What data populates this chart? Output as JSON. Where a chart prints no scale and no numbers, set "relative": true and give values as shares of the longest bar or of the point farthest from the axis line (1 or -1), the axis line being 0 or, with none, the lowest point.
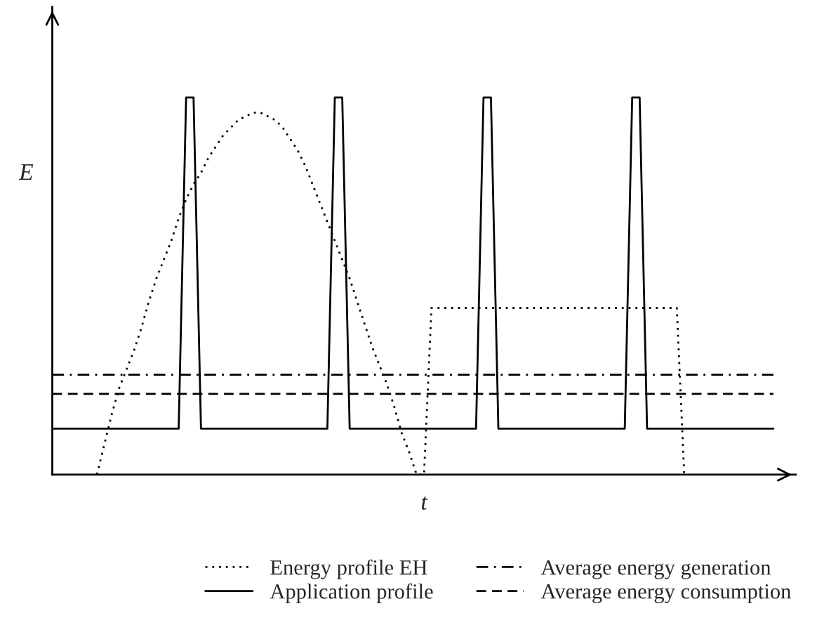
{
  "chart_data": {
    "type": "line",
    "relative": true,
    "xlabel": "t",
    "ylabel": "E",
    "legend": "bottom",
    "categories": [
      null,
      null,
      null,
      null,
      null,
      null,
      null,
      null,
      null,
      null,
      null,
      null,
      null,
      null,
      null,
      null,
      null,
      null,
      null,
      null,
      null,
      null,
      null,
      null,
      null,
      null,
      null,
      null,
      null,
      null,
      null,
      null,
      null,
      null,
      null,
      null,
      null,
      null,
      null,
      null,
      null,
      null,
      null,
      null,
      null,
      null,
      null,
      null,
      null,
      null,
      null,
      null,
      null,
      null,
      null,
      null,
      null,
      null,
      null,
      null,
      null,
      null,
      null,
      null,
      null,
      null,
      null,
      null,
      null,
      null,
      null,
      null,
      null,
      null,
      null,
      null,
      null,
      null,
      null,
      null,
      null,
      null,
      null,
      null,
      null,
      null,
      null,
      null,
      null,
      null,
      null,
      null,
      null,
      null,
      null,
      null,
      null,
      null,
      null,
      null,
      null
    ],
    "series": [
      {
        "name": "Energy profile EH",
        "color": "#000000",
        "line_style": "dotted",
        "values": [
          null,
          null,
          null,
          null,
          null,
          null,
          0,
          0.08,
          0.16,
          0.23,
          0.28,
          0.33,
          0.39,
          0.46,
          0.52,
          0.57,
          0.62,
          0.68,
          0.73,
          0.77,
          0.8,
          0.84,
          0.87,
          0.9,
          0.92,
          0.94,
          0.95,
          0.96,
          0.96,
          0.95,
          0.94,
          0.92,
          0.89,
          0.86,
          0.82,
          0.77,
          0.72,
          0.67,
          0.62,
          0.57,
          0.52,
          0.46,
          0.4,
          0.34,
          0.29,
          0.24,
          0.18,
          0.11,
          0.06,
          0,
          0,
          0.442,
          0.442,
          0.442,
          0.442,
          0.442,
          0.442,
          0.442,
          0.442,
          0.442,
          0.442,
          0.442,
          0.442,
          0.442,
          0.442,
          0.442,
          0.442,
          0.442,
          0.442,
          0.442,
          0.442,
          0.442,
          0.442,
          0.442,
          0.442,
          0.442,
          0.442,
          0.442,
          0.442,
          0.442,
          0.442,
          0.442,
          0.442,
          0.442,
          0.442,
          0,
          null,
          null,
          null,
          null,
          null,
          null,
          null,
          null,
          null,
          null,
          null,
          null,
          null,
          null,
          null
        ]
      },
      {
        "name": "Application profile",
        "color": "#000000",
        "line_style": "solid",
        "values": [
          0.122,
          0.122,
          0.122,
          0.122,
          0.122,
          0.122,
          0.122,
          0.122,
          0.122,
          0.122,
          0.122,
          0.122,
          0.122,
          0.122,
          0.122,
          0.122,
          0.122,
          0.122,
          1,
          1,
          0.122,
          0.122,
          0.122,
          0.122,
          0.122,
          0.122,
          0.122,
          0.122,
          0.122,
          0.122,
          0.122,
          0.122,
          0.122,
          0.122,
          0.122,
          0.122,
          0.122,
          0.122,
          1,
          1,
          0.122,
          0.122,
          0.122,
          0.122,
          0.122,
          0.122,
          0.122,
          0.122,
          0.122,
          0.122,
          0.122,
          0.122,
          0.122,
          0.122,
          0.122,
          0.122,
          0.122,
          0.122,
          1,
          1,
          0.122,
          0.122,
          0.122,
          0.122,
          0.122,
          0.122,
          0.122,
          0.122,
          0.122,
          0.122,
          0.122,
          0.122,
          0.122,
          0.122,
          0.122,
          0.122,
          0.122,
          0.122,
          1,
          1,
          0.122,
          0.122,
          0.122,
          0.122,
          0.122,
          0.122,
          0.122,
          0.122,
          0.122,
          0.122,
          0.122,
          0.122,
          0.122,
          0.122,
          0.122,
          0.122,
          0.122,
          0.122,
          null,
          null,
          null
        ]
      },
      {
        "name": "Average energy generation",
        "color": "#000000",
        "line_style": "dashdot",
        "values": [
          0.265,
          0.265,
          0.265,
          0.265,
          0.265,
          0.265,
          0.265,
          0.265,
          0.265,
          0.265,
          0.265,
          0.265,
          0.265,
          0.265,
          0.265,
          0.265,
          0.265,
          0.265,
          0.265,
          0.265,
          0.265,
          0.265,
          0.265,
          0.265,
          0.265,
          0.265,
          0.265,
          0.265,
          0.265,
          0.265,
          0.265,
          0.265,
          0.265,
          0.265,
          0.265,
          0.265,
          0.265,
          0.265,
          0.265,
          0.265,
          0.265,
          0.265,
          0.265,
          0.265,
          0.265,
          0.265,
          0.265,
          0.265,
          0.265,
          0.265,
          0.265,
          0.265,
          0.265,
          0.265,
          0.265,
          0.265,
          0.265,
          0.265,
          0.265,
          0.265,
          0.265,
          0.265,
          0.265,
          0.265,
          0.265,
          0.265,
          0.265,
          0.265,
          0.265,
          0.265,
          0.265,
          0.265,
          0.265,
          0.265,
          0.265,
          0.265,
          0.265,
          0.265,
          0.265,
          0.265,
          0.265,
          0.265,
          0.265,
          0.265,
          0.265,
          0.265,
          0.265,
          0.265,
          0.265,
          0.265,
          0.265,
          0.265,
          0.265,
          0.265,
          0.265,
          0.265,
          0.265,
          0.265,
          null,
          null,
          null
        ]
      },
      {
        "name": "Average energy consumption",
        "color": "#000000",
        "line_style": "dashed",
        "values": [
          0.214,
          0.214,
          0.214,
          0.214,
          0.214,
          0.214,
          0.214,
          0.214,
          0.214,
          0.214,
          0.214,
          0.214,
          0.214,
          0.214,
          0.214,
          0.214,
          0.214,
          0.214,
          0.214,
          0.214,
          0.214,
          0.214,
          0.214,
          0.214,
          0.214,
          0.214,
          0.214,
          0.214,
          0.214,
          0.214,
          0.214,
          0.214,
          0.214,
          0.214,
          0.214,
          0.214,
          0.214,
          0.214,
          0.214,
          0.214,
          0.214,
          0.214,
          0.214,
          0.214,
          0.214,
          0.214,
          0.214,
          0.214,
          0.214,
          0.214,
          0.214,
          0.214,
          0.214,
          0.214,
          0.214,
          0.214,
          0.214,
          0.214,
          0.214,
          0.214,
          0.214,
          0.214,
          0.214,
          0.214,
          0.214,
          0.214,
          0.214,
          0.214,
          0.214,
          0.214,
          0.214,
          0.214,
          0.214,
          0.214,
          0.214,
          0.214,
          0.214,
          0.214,
          0.214,
          0.214,
          0.214,
          0.214,
          0.214,
          0.214,
          0.214,
          0.214,
          0.214,
          0.214,
          0.214,
          0.214,
          0.214,
          0.214,
          0.214,
          0.214,
          0.214,
          0.214,
          0.214,
          0.214,
          null,
          null,
          null
        ]
      }
    ]
  }
}
